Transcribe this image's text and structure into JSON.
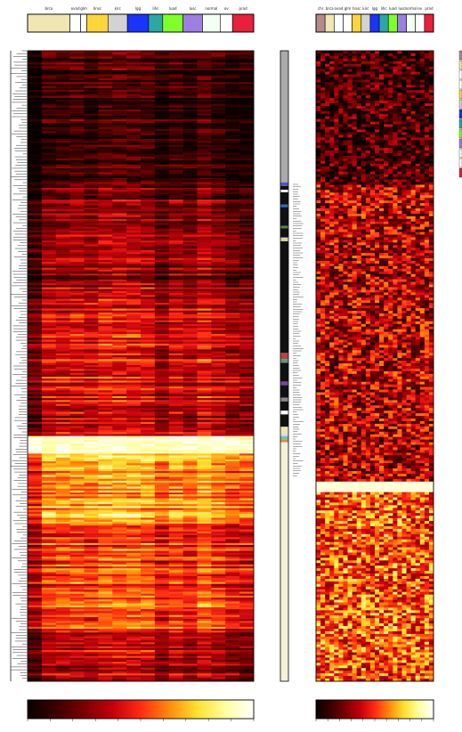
{
  "chart_data": [
    {
      "type": "heatmap",
      "panel": "left",
      "column_groups": [
        {
          "name": "brca",
          "color": "#efe6b0",
          "span": 48
        },
        {
          "name": "ovad",
          "color": "#ffffff",
          "span": 12
        },
        {
          "name": "glm",
          "color": "#ffffff",
          "span": 7
        },
        {
          "name": "hnsc",
          "color": "#ffd43b",
          "span": 24
        },
        {
          "name": "kirc",
          "color": "#d3d3d3",
          "span": 22
        },
        {
          "name": "lgg",
          "color": "#1a33ff",
          "span": 24
        },
        {
          "name": "lihc",
          "color": "#2ba8a3",
          "span": 16
        },
        {
          "name": "luad",
          "color": "#7fff2a",
          "span": 23
        },
        {
          "name": "lusc",
          "color": "#9d7fe0",
          "span": 22
        },
        {
          "name": "normal",
          "color": "#f2fff2",
          "span": 20
        },
        {
          "name": "ov",
          "color": "#ffffff",
          "span": 14
        },
        {
          "name": "prad",
          "color": "#e8203a",
          "span": 24
        }
      ],
      "colorscale": [
        "#0b0000",
        "#3a0000",
        "#7a0000",
        "#c2000c",
        "#ff2a14",
        "#ff8a0a",
        "#ffe030",
        "#ffffa0",
        "#ffffff"
      ],
      "row_blocks": [
        {
          "rows": 150,
          "level": 0.05
        },
        {
          "rows": 20,
          "level": 0.15
        },
        {
          "rows": 40,
          "level": 0.18
        },
        {
          "rows": 60,
          "level": 0.2
        },
        {
          "rows": 40,
          "level": 0.3
        },
        {
          "rows": 60,
          "level": 0.38
        },
        {
          "rows": 40,
          "level": 0.35
        },
        {
          "rows": 30,
          "level": 0.3
        },
        {
          "rows": 20,
          "level": 0.9
        },
        {
          "rows": 80,
          "level": 0.6
        },
        {
          "rows": 120,
          "level": 0.45
        },
        {
          "rows": 60,
          "level": 0.3
        }
      ],
      "row_annotation_bar": [
        "#aaaaaa",
        "#5a4fcf",
        "#111111",
        "#ffffff",
        "#111111",
        "#1b6fd8",
        "#111111",
        "#4e8c3a",
        "#111111",
        "#d8d0a0",
        "#111111",
        "#c04040",
        "#4aa37a",
        "#111111",
        "#7744aa",
        "#111111",
        "#888888",
        "#111111",
        "#ffffff",
        "#111111",
        "#efe6b0",
        "#dddddd",
        "#5ac8c8",
        "#ee8833",
        "#f5f2d8"
      ]
    },
    {
      "type": "heatmap",
      "panel": "right",
      "column_groups": [
        {
          "name": "chr",
          "color": "#b58a8a",
          "span": 10
        },
        {
          "name": "brca",
          "color": "#efe6b0",
          "span": 10
        },
        {
          "name": "ovad",
          "color": "#ffffff",
          "span": 10
        },
        {
          "name": "glm",
          "color": "#ffffff",
          "span": 10
        },
        {
          "name": "hnsc",
          "color": "#ffd43b",
          "span": 10
        },
        {
          "name": "kirc",
          "color": "#d3d3d3",
          "span": 10
        },
        {
          "name": "lgg",
          "color": "#1a33ff",
          "span": 10
        },
        {
          "name": "lihc",
          "color": "#2ba8a3",
          "span": 10
        },
        {
          "name": "luad",
          "color": "#7fff2a",
          "span": 10
        },
        {
          "name": "lusc",
          "color": "#9d7fe0",
          "span": 10
        },
        {
          "name": "normal",
          "color": "#f2fff2",
          "span": 10
        },
        {
          "name": "ov",
          "color": "#ffffff",
          "span": 10
        },
        {
          "name": "prad",
          "color": "#e8203a",
          "span": 10
        }
      ],
      "colorscale": [
        "#0b0000",
        "#3a0000",
        "#7a0000",
        "#c2000c",
        "#ff2a14",
        "#ff8a0a",
        "#ffe030",
        "#ffffa0",
        "#ffffff"
      ]
    }
  ]
}
